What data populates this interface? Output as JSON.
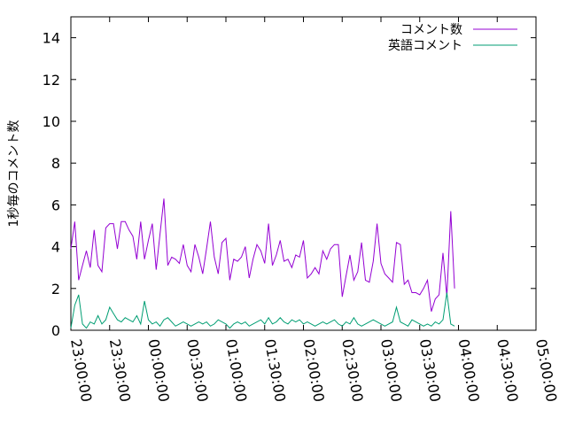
{
  "chart_data": {
    "type": "line",
    "title": "",
    "xlabel": "",
    "ylabel": "1秒毎のコメント数",
    "ylim": [
      0,
      15
    ],
    "yticks": [
      0,
      2,
      4,
      6,
      8,
      10,
      12,
      14
    ],
    "xticks": [
      "23:00:00",
      "23:30:00",
      "00:00:00",
      "00:30:00",
      "01:00:00",
      "01:30:00",
      "02:00:00",
      "02:30:00",
      "03:00:00",
      "03:30:00",
      "04:00:00",
      "04:30:00",
      "05:00:00"
    ],
    "xlim_minutes": [
      0,
      360
    ],
    "x_step_minutes": 3,
    "legend_position": "top-right",
    "series": [
      {
        "name": "コメント数",
        "color": "#9400d3",
        "values": [
          3.9,
          5.2,
          2.4,
          3.1,
          3.8,
          3.0,
          4.8,
          3.1,
          2.8,
          4.9,
          5.1,
          5.1,
          3.9,
          5.2,
          5.2,
          4.8,
          4.5,
          3.4,
          5.2,
          3.4,
          4.3,
          5.1,
          2.9,
          4.6,
          6.3,
          3.1,
          3.5,
          3.4,
          3.2,
          4.1,
          3.1,
          2.8,
          4.1,
          3.5,
          2.7,
          3.9,
          5.2,
          3.5,
          2.7,
          4.2,
          4.4,
          2.4,
          3.4,
          3.3,
          3.5,
          4.0,
          2.5,
          3.4,
          4.1,
          3.8,
          3.2,
          5.1,
          3.1,
          3.6,
          4.3,
          3.3,
          3.4,
          3.0,
          3.6,
          3.5,
          4.3,
          2.5,
          2.7,
          3.0,
          2.7,
          3.8,
          3.4,
          3.9,
          4.1,
          4.1,
          1.6,
          2.6,
          3.6,
          2.4,
          2.8,
          4.2,
          2.4,
          2.3,
          3.3,
          5.1,
          3.2,
          2.7,
          2.5,
          2.3,
          4.2,
          4.1,
          2.2,
          2.4,
          1.8,
          1.8,
          1.7,
          2.0,
          2.4,
          0.9,
          1.5,
          1.7,
          3.7,
          1.6,
          5.7,
          2.0
        ]
      },
      {
        "name": "英語コメント",
        "color": "#009e73",
        "values": [
          0.1,
          1.2,
          1.7,
          0.3,
          0.1,
          0.4,
          0.3,
          0.7,
          0.3,
          0.5,
          1.1,
          0.8,
          0.5,
          0.4,
          0.6,
          0.5,
          0.4,
          0.7,
          0.3,
          1.4,
          0.5,
          0.3,
          0.4,
          0.2,
          0.5,
          0.6,
          0.4,
          0.2,
          0.3,
          0.4,
          0.3,
          0.2,
          0.3,
          0.4,
          0.3,
          0.4,
          0.2,
          0.3,
          0.5,
          0.4,
          0.3,
          0.1,
          0.3,
          0.4,
          0.3,
          0.4,
          0.2,
          0.3,
          0.4,
          0.5,
          0.3,
          0.6,
          0.3,
          0.4,
          0.6,
          0.4,
          0.3,
          0.5,
          0.4,
          0.5,
          0.3,
          0.4,
          0.3,
          0.2,
          0.3,
          0.4,
          0.3,
          0.4,
          0.5,
          0.3,
          0.2,
          0.4,
          0.3,
          0.6,
          0.3,
          0.2,
          0.3,
          0.4,
          0.5,
          0.4,
          0.3,
          0.2,
          0.3,
          0.4,
          1.1,
          0.4,
          0.3,
          0.2,
          0.5,
          0.4,
          0.3,
          0.2,
          0.3,
          0.2,
          0.4,
          0.3,
          0.5,
          1.8,
          0.3,
          0.2
        ]
      }
    ]
  }
}
